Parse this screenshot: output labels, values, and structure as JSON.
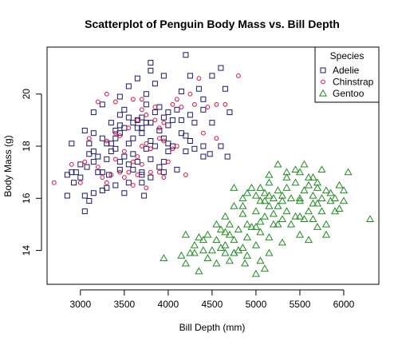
{
  "chart_data": {
    "type": "scatter",
    "title": "Scatterplot of Penguin Body Mass vs. Bill Depth",
    "xlabel": "Bill Depth (mm)",
    "ylabel": "Body Mass (g)",
    "xlim": [
      2620,
      6400
    ],
    "ylim": [
      12.7,
      21.8
    ],
    "xticks": [
      3000,
      3500,
      4000,
      4500,
      5000,
      5500,
      6000
    ],
    "yticks": [
      14,
      16,
      18,
      20
    ],
    "grid": false,
    "legend": {
      "title": "Species",
      "placement": "top-right"
    },
    "series": [
      {
        "name": "Adelie",
        "marker": "square",
        "color": "#191970",
        "points": [
          [
            2850,
            16.9
          ],
          [
            2900,
            17.0
          ],
          [
            2900,
            18.1
          ],
          [
            2925,
            16.6
          ],
          [
            3000,
            16.8
          ],
          [
            3050,
            18.6
          ],
          [
            3075,
            17.2
          ],
          [
            3150,
            17.4
          ],
          [
            3200,
            17.6
          ],
          [
            3250,
            17.0
          ],
          [
            3300,
            17.5
          ],
          [
            3350,
            17.8
          ],
          [
            3400,
            17.9
          ],
          [
            3450,
            17.1
          ],
          [
            3500,
            17.6
          ],
          [
            3550,
            17.3
          ],
          [
            3300,
            18.1
          ],
          [
            3400,
            18.3
          ],
          [
            3500,
            18.7
          ],
          [
            3600,
            18.3
          ],
          [
            3650,
            18.7
          ],
          [
            3700,
            18.5
          ],
          [
            3800,
            18.2
          ],
          [
            3900,
            18.6
          ],
          [
            3950,
            18.3
          ],
          [
            4000,
            18.8
          ],
          [
            4150,
            19.0
          ],
          [
            4200,
            18.4
          ],
          [
            4300,
            18.9
          ],
          [
            4400,
            19.4
          ],
          [
            4500,
            18.9
          ],
          [
            4700,
            19.3
          ],
          [
            3150,
            19.3
          ],
          [
            3250,
            19.6
          ],
          [
            3350,
            18.9
          ],
          [
            3450,
            19.2
          ],
          [
            3500,
            19.4
          ],
          [
            3550,
            19.1
          ],
          [
            3700,
            19.1
          ],
          [
            3750,
            19.6
          ],
          [
            3800,
            18.9
          ],
          [
            3850,
            19.3
          ],
          [
            3900,
            19.5
          ],
          [
            3950,
            19.1
          ],
          [
            4000,
            19.3
          ],
          [
            4050,
            19.0
          ],
          [
            4100,
            19.4
          ],
          [
            4250,
            19.2
          ],
          [
            3450,
            19.9
          ],
          [
            3550,
            20.3
          ],
          [
            3650,
            20.6
          ],
          [
            3750,
            20.0
          ],
          [
            3800,
            20.9
          ],
          [
            3850,
            20.4
          ],
          [
            3950,
            20.7
          ],
          [
            4150,
            20.1
          ],
          [
            4250,
            20.7
          ],
          [
            4350,
            20.2
          ],
          [
            4650,
            20.2
          ],
          [
            4600,
            21.0
          ],
          [
            4200,
            21.5
          ],
          [
            3800,
            21.2
          ],
          [
            4500,
            20.7
          ],
          [
            4400,
            19.8
          ],
          [
            3050,
            16.1
          ],
          [
            3100,
            15.9
          ],
          [
            2850,
            16.1
          ],
          [
            3150,
            16.2
          ],
          [
            3250,
            16.3
          ],
          [
            3500,
            16.2
          ],
          [
            3700,
            16.6
          ],
          [
            3725,
            16.1
          ],
          [
            3700,
            16.9
          ],
          [
            3600,
            17.1
          ],
          [
            3800,
            16.8
          ],
          [
            3900,
            17.2
          ],
          [
            3950,
            17.0
          ],
          [
            4100,
            17.1
          ],
          [
            4200,
            17.8
          ],
          [
            4300,
            17.9
          ],
          [
            4400,
            18.0
          ],
          [
            4600,
            18.0
          ],
          [
            4675,
            17.6
          ],
          [
            4475,
            17.7
          ],
          [
            3400,
            16.5
          ],
          [
            3300,
            16.4
          ],
          [
            3200,
            17.0
          ],
          [
            3100,
            17.7
          ],
          [
            2950,
            17.0
          ],
          [
            3000,
            17.3
          ],
          [
            3100,
            18.1
          ],
          [
            3150,
            18.5
          ],
          [
            3250,
            18.3
          ],
          [
            3350,
            18.1
          ],
          [
            3450,
            18.5
          ],
          [
            3550,
            18.1
          ],
          [
            3600,
            18.9
          ],
          [
            3650,
            19.0
          ],
          [
            3750,
            17.9
          ],
          [
            3850,
            18.0
          ],
          [
            3950,
            17.4
          ],
          [
            4000,
            17.8
          ],
          [
            4050,
            18.0
          ],
          [
            4150,
            18.5
          ],
          [
            4250,
            18.2
          ],
          [
            3700,
            18.7
          ],
          [
            3450,
            17.4
          ],
          [
            3600,
            17.7
          ],
          [
            3650,
            17.4
          ],
          [
            3800,
            17.5
          ],
          [
            3450,
            18.8
          ],
          [
            3700,
            17.0
          ],
          [
            3325,
            16.9
          ],
          [
            3050,
            15.5
          ],
          [
            3150,
            17.8
          ],
          [
            3400,
            18.6
          ],
          [
            3750,
            18.9
          ],
          [
            4000,
            18.1
          ],
          [
            4400,
            17.6
          ],
          [
            3550,
            16.6
          ]
        ]
      },
      {
        "name": "Chinstrap",
        "marker": "circle",
        "color": "#dc143c",
        "points": [
          [
            2700,
            16.6
          ],
          [
            2900,
            17.3
          ],
          [
            3050,
            17.4
          ],
          [
            3200,
            17.2
          ],
          [
            3250,
            16.8
          ],
          [
            3300,
            16.6
          ],
          [
            3350,
            16.9
          ],
          [
            3400,
            17.5
          ],
          [
            3450,
            17.0
          ],
          [
            3500,
            16.8
          ],
          [
            3550,
            17.0
          ],
          [
            3600,
            16.5
          ],
          [
            3650,
            16.9
          ],
          [
            3700,
            17.3
          ],
          [
            3750,
            16.4
          ],
          [
            3800,
            17.0
          ],
          [
            3900,
            17.0
          ],
          [
            3950,
            16.8
          ],
          [
            3500,
            17.8
          ],
          [
            3600,
            17.4
          ],
          [
            3650,
            17.6
          ],
          [
            3700,
            18.0
          ],
          [
            3750,
            18.1
          ],
          [
            3800,
            17.9
          ],
          [
            3900,
            18.3
          ],
          [
            3950,
            18.2
          ],
          [
            4050,
            17.9
          ],
          [
            4100,
            18.0
          ],
          [
            4400,
            18.5
          ],
          [
            4550,
            18.3
          ],
          [
            3300,
            18.2
          ],
          [
            3400,
            18.5
          ],
          [
            3450,
            18.4
          ],
          [
            3550,
            18.7
          ],
          [
            3650,
            19.0
          ],
          [
            3700,
            19.4
          ],
          [
            3750,
            19.2
          ],
          [
            3850,
            19.0
          ],
          [
            3900,
            18.7
          ],
          [
            3950,
            18.9
          ],
          [
            4100,
            19.8
          ],
          [
            4150,
            19.5
          ],
          [
            4300,
            19.6
          ],
          [
            4450,
            19.5
          ],
          [
            4550,
            19.6
          ],
          [
            4650,
            19.6
          ],
          [
            4800,
            20.7
          ],
          [
            4350,
            20.6
          ],
          [
            4250,
            20.0
          ],
          [
            4050,
            19.6
          ],
          [
            3850,
            19.5
          ],
          [
            3700,
            19.8
          ],
          [
            3600,
            19.8
          ],
          [
            3400,
            19.7
          ],
          [
            3300,
            20.0
          ],
          [
            3200,
            19.7
          ],
          [
            3100,
            18.3
          ],
          [
            3000,
            16.6
          ],
          [
            4000,
            17.4
          ],
          [
            4200,
            16.9
          ]
        ]
      },
      {
        "name": "Gentoo",
        "marker": "triangle",
        "color": "#228b22",
        "points": [
          [
            3950,
            13.7
          ],
          [
            4150,
            13.8
          ],
          [
            4200,
            13.5
          ],
          [
            4300,
            13.9
          ],
          [
            4350,
            13.2
          ],
          [
            4400,
            14.0
          ],
          [
            4450,
            13.7
          ],
          [
            4500,
            14.0
          ],
          [
            4550,
            13.5
          ],
          [
            4600,
            14.1
          ],
          [
            4650,
            13.9
          ],
          [
            4700,
            13.6
          ],
          [
            4750,
            13.9
          ],
          [
            4800,
            14.0
          ],
          [
            4850,
            14.1
          ],
          [
            4875,
            13.5
          ],
          [
            4900,
            13.8
          ],
          [
            5000,
            13.1
          ],
          [
            5050,
            13.6
          ],
          [
            5100,
            13.3
          ],
          [
            5150,
            13.9
          ],
          [
            4200,
            14.6
          ],
          [
            4300,
            14.2
          ],
          [
            4400,
            14.4
          ],
          [
            4450,
            14.6
          ],
          [
            4550,
            14.4
          ],
          [
            4600,
            14.8
          ],
          [
            4650,
            14.2
          ],
          [
            4700,
            14.6
          ],
          [
            4750,
            14.4
          ],
          [
            4800,
            14.8
          ],
          [
            4900,
            14.5
          ],
          [
            4950,
            14.9
          ],
          [
            5000,
            14.2
          ],
          [
            5050,
            14.7
          ],
          [
            5150,
            14.5
          ],
          [
            5300,
            14.3
          ],
          [
            5500,
            14.6
          ],
          [
            5600,
            14.4
          ],
          [
            5700,
            14.9
          ],
          [
            5800,
            14.6
          ],
          [
            5200,
            15.0
          ],
          [
            4550,
            15.0
          ],
          [
            4650,
            15.3
          ],
          [
            4700,
            15.0
          ],
          [
            4750,
            15.7
          ],
          [
            4850,
            15.4
          ],
          [
            4900,
            15.0
          ],
          [
            5000,
            15.5
          ],
          [
            5050,
            15.1
          ],
          [
            5100,
            15.3
          ],
          [
            5150,
            15.7
          ],
          [
            5200,
            15.4
          ],
          [
            5250,
            15.7
          ],
          [
            5300,
            15.2
          ],
          [
            5350,
            15.5
          ],
          [
            5400,
            15.0
          ],
          [
            5450,
            15.3
          ],
          [
            5500,
            15.9
          ],
          [
            5550,
            15.2
          ],
          [
            5600,
            15.5
          ],
          [
            5650,
            15.2
          ],
          [
            5700,
            15.8
          ],
          [
            5750,
            15.5
          ],
          [
            5800,
            15.0
          ],
          [
            5850,
            15.9
          ],
          [
            5900,
            15.5
          ],
          [
            5950,
            15.6
          ],
          [
            6000,
            15.9
          ],
          [
            6300,
            15.2
          ],
          [
            4850,
            16.0
          ],
          [
            4900,
            16.2
          ],
          [
            4950,
            16.4
          ],
          [
            5000,
            16.1
          ],
          [
            5050,
            16.4
          ],
          [
            5100,
            16.2
          ],
          [
            5150,
            16.6
          ],
          [
            5200,
            16.0
          ],
          [
            5250,
            16.3
          ],
          [
            5300,
            16.1
          ],
          [
            5350,
            16.4
          ],
          [
            5400,
            16.0
          ],
          [
            5450,
            16.6
          ],
          [
            5500,
            16.0
          ],
          [
            5550,
            16.3
          ],
          [
            5600,
            16.5
          ],
          [
            5650,
            16.1
          ],
          [
            5700,
            16.6
          ],
          [
            5750,
            16.0
          ],
          [
            5850,
            16.2
          ],
          [
            5950,
            16.5
          ],
          [
            6000,
            16.3
          ],
          [
            5150,
            16.9
          ],
          [
            5250,
            17.3
          ],
          [
            5350,
            16.8
          ],
          [
            5450,
            17.1
          ],
          [
            5550,
            17.3
          ],
          [
            5650,
            16.8
          ],
          [
            5750,
            17.1
          ],
          [
            6050,
            17.0
          ],
          [
            5500,
            17.0
          ],
          [
            5350,
            17.0
          ],
          [
            5600,
            16.8
          ],
          [
            4750,
            16.4
          ],
          [
            4850,
            15.7
          ],
          [
            5100,
            15.9
          ],
          [
            5300,
            15.9
          ],
          [
            5500,
            15.3
          ],
          [
            5650,
            15.8
          ],
          [
            5700,
            16.4
          ],
          [
            5800,
            16.3
          ],
          [
            5900,
            16.0
          ],
          [
            4250,
            13.9
          ],
          [
            4350,
            14.5
          ],
          [
            4650,
            14.7
          ],
          [
            4750,
            13.9
          ],
          [
            5000,
            14.9
          ],
          [
            5250,
            15.0
          ],
          [
            5050,
            15.9
          ],
          [
            5150,
            16.1
          ]
        ]
      }
    ]
  }
}
